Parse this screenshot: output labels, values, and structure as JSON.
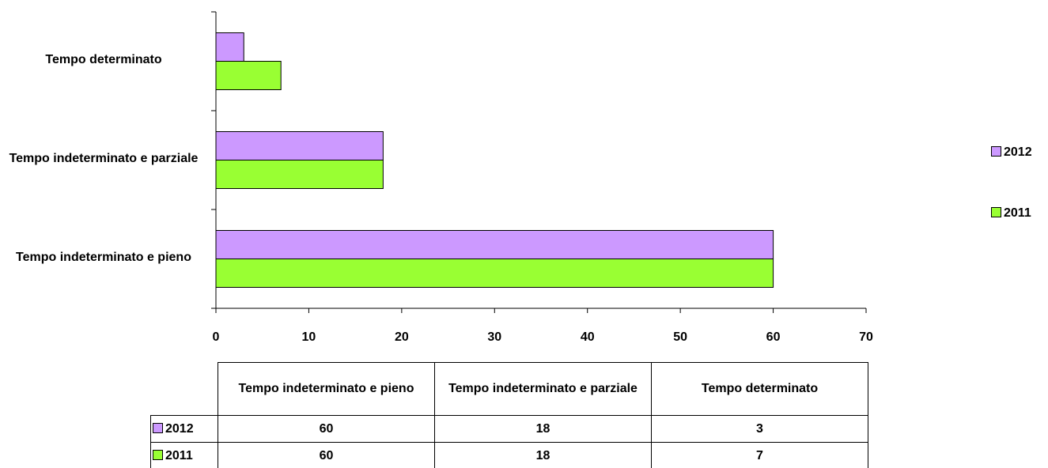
{
  "chart_data": {
    "type": "bar",
    "orientation": "horizontal",
    "categories": [
      "Tempo indeterminato e pieno",
      "Tempo indeterminato e parziale",
      "Tempo determinato"
    ],
    "series": [
      {
        "name": "2012",
        "color": "#cc99ff",
        "values": [
          60,
          18,
          3
        ]
      },
      {
        "name": "2011",
        "color": "#99ff33",
        "values": [
          60,
          18,
          7
        ]
      }
    ],
    "xlim": [
      0,
      70
    ],
    "xticks": [
      0,
      10,
      20,
      30,
      40,
      50,
      60,
      70
    ],
    "legend": "right",
    "data_table": true
  }
}
